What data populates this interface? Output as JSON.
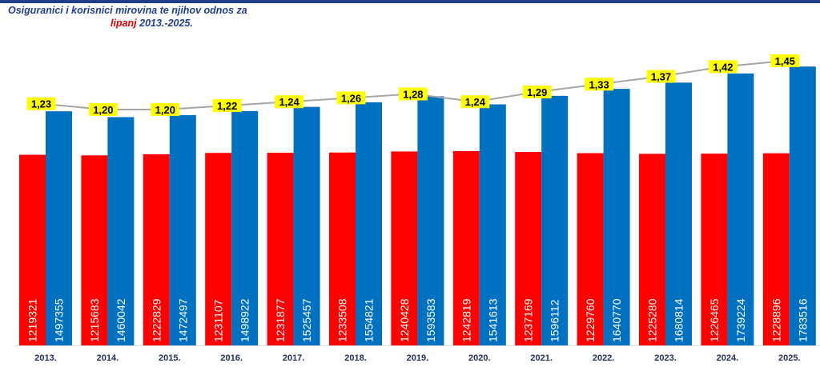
{
  "title": {
    "line1": "Osiguranici i korisnici mirovina te njihov odnos za",
    "line2_highlight": "lipanj",
    "line2_rest": " 2013.-2025."
  },
  "chart_data": {
    "type": "bar",
    "categories": [
      "2013.",
      "2014.",
      "2015.",
      "2016.",
      "2017.",
      "2018.",
      "2019.",
      "2020.",
      "2021.",
      "2022.",
      "2023.",
      "2024.",
      "2025."
    ],
    "series": [
      {
        "values": [
          1219321,
          1215683,
          1222829,
          1231107,
          1231877,
          1233508,
          1240428,
          1242819,
          1237169,
          1229760,
          1225280,
          1226465,
          1228896
        ],
        "color": "#ff0000"
      },
      {
        "values": [
          1497355,
          1460042,
          1472497,
          1498922,
          1525457,
          1554821,
          1593583,
          1541613,
          1596112,
          1640770,
          1680814,
          1739224,
          1783516
        ],
        "color": "#0070c0"
      }
    ],
    "ratio_line": {
      "labels": [
        "1,23",
        "1,20",
        "1,20",
        "1,22",
        "1,24",
        "1,26",
        "1,28",
        "1,24",
        "1,29",
        "1,33",
        "1,37",
        "1,42",
        "1,45"
      ],
      "values": [
        1.23,
        1.2,
        1.2,
        1.22,
        1.24,
        1.26,
        1.28,
        1.24,
        1.29,
        1.33,
        1.37,
        1.42,
        1.45
      ],
      "line_color": "#a6a6a6",
      "label_background": "#ffff00"
    },
    "ylim": [
      0,
      1800000
    ],
    "grid": false,
    "legend": "none"
  }
}
